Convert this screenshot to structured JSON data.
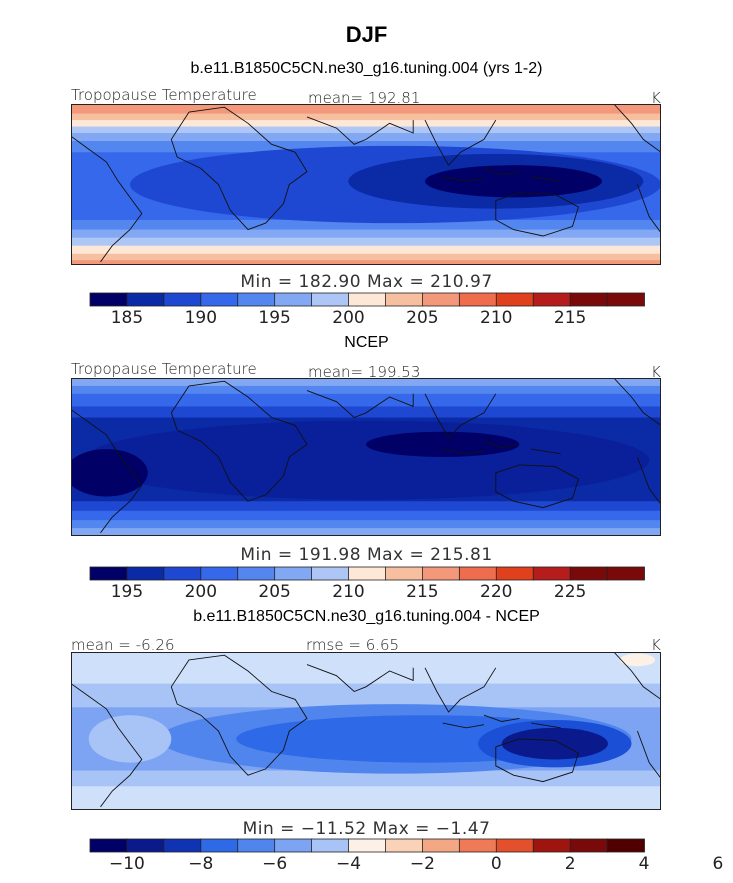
{
  "figure_title": "DJF",
  "chart_data": [
    {
      "type": "heatmap",
      "title": "b.e11.B1850C5CN.ne30_g16.tuning.004 (yrs 1-2)",
      "variable": "Tropopause Temperature",
      "units": "K",
      "mean_label": "mean=",
      "mean": "192.81",
      "min_max_text": "Min = 182.90 Max = 210.97",
      "min": 182.9,
      "max": 210.97,
      "colorbar_ticks": [
        "185",
        "190",
        "195",
        "200",
        "205",
        "210",
        "215"
      ],
      "colorbar_levels": [
        182.5,
        185,
        187.5,
        190,
        192.5,
        195,
        197.5,
        200,
        202.5,
        205,
        207.5,
        210,
        212.5,
        215,
        217.5
      ]
    },
    {
      "type": "heatmap",
      "title": "NCEP",
      "variable": "Tropopause Temperature",
      "units": "K",
      "mean_label": "mean=",
      "mean": "199.53",
      "min_max_text": "Min = 191.98 Max = 215.81",
      "min": 191.98,
      "max": 215.81,
      "colorbar_ticks": [
        "195",
        "200",
        "205",
        "210",
        "215",
        "220",
        "225"
      ],
      "colorbar_levels": [
        192.5,
        195,
        197.5,
        200,
        202.5,
        205,
        207.5,
        210,
        212.5,
        215,
        217.5,
        220,
        222.5,
        225,
        227.5
      ]
    },
    {
      "type": "heatmap",
      "title": "b.e11.B1850C5CN.ne30_g16.tuning.004 - NCEP",
      "variable": "",
      "units": "K",
      "mean_label": "mean =",
      "mean": "-6.26",
      "rmse_label": "rmse =",
      "rmse": "6.65",
      "min_max_text": "Min = −11.52 Max = −1.47",
      "min": -11.52,
      "max": -1.47,
      "colorbar_ticks": [
        "−10",
        "−8",
        "−6",
        "−4",
        "−2",
        "0",
        "2",
        "4",
        "6"
      ],
      "colorbar_levels": [
        -11,
        -10,
        -9,
        -8,
        -7,
        -6,
        -5,
        -4,
        -3,
        -2,
        -1,
        0,
        1,
        2,
        3,
        4,
        5,
        6,
        7
      ]
    }
  ],
  "colors": {
    "scale_abs": [
      "#000066",
      "#0b2aa6",
      "#1f48d2",
      "#3568ea",
      "#5486f0",
      "#82a8f3",
      "#aec6f6",
      "#fde8d8",
      "#f6c0a0",
      "#f3987a",
      "#ef6c4c",
      "#e0401c",
      "#b71c1c",
      "#7a0a0a"
    ],
    "scale_diff": [
      "#000066",
      "#0a1a8c",
      "#0f33b3",
      "#1a4fd6",
      "#2e6ae8",
      "#5185ee",
      "#7da3f3",
      "#a8c4f7",
      "#cfe0fb",
      "#fdf0e6",
      "#f9d2b8",
      "#f4a785",
      "#ef7a55",
      "#e4502c",
      "#c9301a",
      "#a01410",
      "#7a0a0a",
      "#500000"
    ]
  }
}
